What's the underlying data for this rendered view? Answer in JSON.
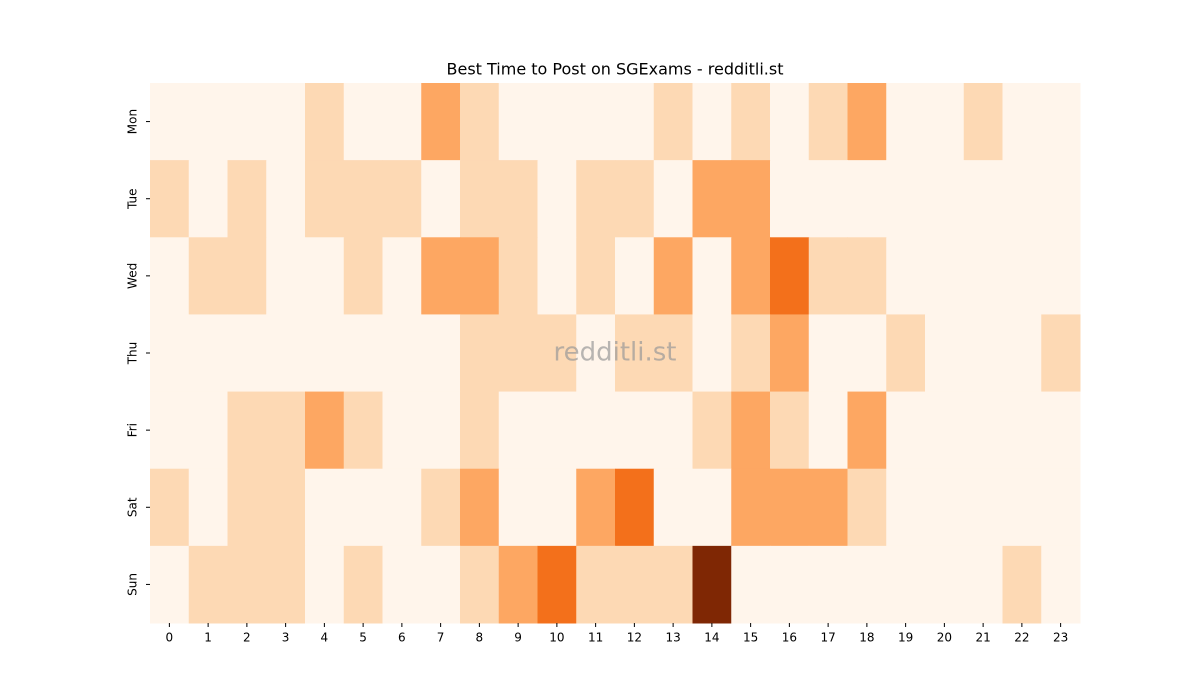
{
  "chart_data": {
    "type": "heatmap",
    "title": "Best Time to Post on SGExams - redditli.st",
    "watermark": "redditli.st",
    "x_categories": [
      "0",
      "1",
      "2",
      "3",
      "4",
      "5",
      "6",
      "7",
      "8",
      "9",
      "10",
      "11",
      "12",
      "13",
      "14",
      "15",
      "16",
      "17",
      "18",
      "19",
      "20",
      "21",
      "22",
      "23"
    ],
    "y_categories": [
      "Mon",
      "Tue",
      "Wed",
      "Thu",
      "Fri",
      "Sat",
      "Sun"
    ],
    "values": [
      [
        0,
        0,
        0,
        0,
        1,
        0,
        0,
        2,
        1,
        0,
        0,
        0,
        0,
        1,
        0,
        1,
        0,
        1,
        2,
        0,
        0,
        1,
        0,
        0
      ],
      [
        1,
        0,
        1,
        0,
        1,
        1,
        1,
        0,
        1,
        1,
        0,
        1,
        1,
        0,
        2,
        2,
        0,
        0,
        0,
        0,
        0,
        0,
        0,
        0
      ],
      [
        0,
        1,
        1,
        0,
        0,
        1,
        0,
        2,
        2,
        1,
        0,
        1,
        0,
        2,
        0,
        2,
        3,
        1,
        1,
        0,
        0,
        0,
        0,
        0
      ],
      [
        0,
        0,
        0,
        0,
        0,
        0,
        0,
        0,
        1,
        1,
        1,
        0,
        1,
        1,
        0,
        1,
        2,
        0,
        0,
        1,
        0,
        0,
        0,
        1
      ],
      [
        0,
        0,
        1,
        1,
        2,
        1,
        0,
        0,
        1,
        0,
        0,
        0,
        0,
        0,
        1,
        2,
        1,
        0,
        2,
        0,
        0,
        0,
        0,
        0
      ],
      [
        1,
        0,
        1,
        1,
        0,
        0,
        0,
        1,
        2,
        0,
        0,
        2,
        3,
        0,
        0,
        2,
        2,
        2,
        1,
        0,
        0,
        0,
        0,
        0
      ],
      [
        0,
        1,
        1,
        1,
        0,
        1,
        0,
        0,
        1,
        2,
        3,
        1,
        1,
        1,
        5,
        0,
        0,
        0,
        0,
        0,
        0,
        0,
        1,
        0
      ]
    ],
    "vmin": 0,
    "vmax": 5,
    "colorscale": [
      "#fff5eb",
      "#fee6ce",
      "#fdd0a2",
      "#fdae6b",
      "#fd8d3c",
      "#f16913",
      "#d94801",
      "#a63603",
      "#7f2704"
    ]
  }
}
